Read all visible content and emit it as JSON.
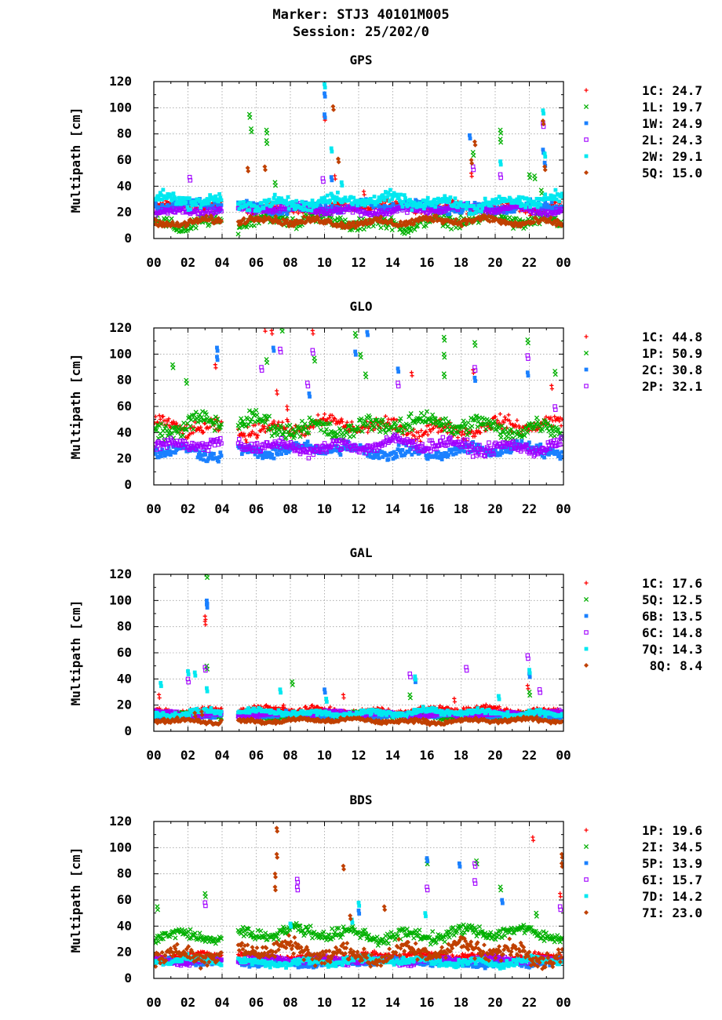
{
  "header": {
    "marker": "Marker: STJ3 40101M005",
    "session": "Session: 25/202/0"
  },
  "chart_data": [
    {
      "type": "scatter",
      "title": "GPS",
      "ylabel": "Multipath [cm]",
      "xlabel": "",
      "x_ticks": [
        "00",
        "02",
        "04",
        "06",
        "08",
        "10",
        "12",
        "14",
        "16",
        "18",
        "20",
        "22",
        "00"
      ],
      "y_ticks": [
        0,
        20,
        40,
        60,
        80,
        100,
        120
      ],
      "xlim": [
        0,
        24
      ],
      "ylim": [
        0,
        120
      ],
      "grid": true,
      "legend_position": "right",
      "gaps": [
        [
          4.0,
          4.9
        ]
      ],
      "series": [
        {
          "name": "1C",
          "value": "24.7",
          "marker": "plus",
          "color": "#ff0000",
          "base": 24,
          "spread": 6,
          "spikes": [
            [
              10.0,
              93
            ],
            [
              10.6,
              48
            ],
            [
              12.3,
              36
            ],
            [
              18.6,
              50
            ]
          ]
        },
        {
          "name": "1L",
          "value": "19.7",
          "marker": "cross",
          "color": "#00b000",
          "base": 13,
          "spread": 9,
          "spikes": [
            [
              5.6,
              95
            ],
            [
              5.7,
              84
            ],
            [
              6.6,
              83
            ],
            [
              6.6,
              75
            ],
            [
              7.1,
              43
            ],
            [
              18.7,
              66
            ],
            [
              20.3,
              83
            ],
            [
              20.3,
              76
            ],
            [
              22.0,
              49
            ],
            [
              22.3,
              48
            ],
            [
              22.7,
              37
            ]
          ]
        },
        {
          "name": "1W",
          "value": "24.9",
          "marker": "square",
          "color": "#1a80ff",
          "base": 24,
          "spread": 6,
          "spikes": [
            [
              10.0,
              111
            ],
            [
              10.0,
              95
            ],
            [
              10.4,
              47
            ],
            [
              18.5,
              79
            ],
            [
              22.8,
              68
            ],
            [
              22.9,
              58
            ]
          ]
        },
        {
          "name": "2L",
          "value": "24.3",
          "marker": "opensquare",
          "color": "#a000ff",
          "base": 22,
          "spread": 5,
          "spikes": [
            [
              2.1,
              47
            ],
            [
              9.9,
              46
            ],
            [
              18.7,
              55
            ],
            [
              20.3,
              49
            ],
            [
              22.8,
              88
            ]
          ]
        },
        {
          "name": "2W",
          "value": "29.1",
          "marker": "square",
          "color": "#00e8f0",
          "base": 28,
          "spread": 8,
          "spikes": [
            [
              10.0,
              118
            ],
            [
              10.4,
              69
            ],
            [
              11.0,
              43
            ],
            [
              20.3,
              59
            ],
            [
              22.8,
              98
            ],
            [
              22.9,
              65
            ]
          ]
        },
        {
          "name": "5Q",
          "value": "15.0",
          "marker": "diamond",
          "color": "#c04000",
          "base": 13,
          "spread": 5,
          "spikes": [
            [
              5.5,
              54
            ],
            [
              6.5,
              55
            ],
            [
              10.5,
              101
            ],
            [
              10.8,
              61
            ],
            [
              18.8,
              74
            ],
            [
              18.6,
              60
            ],
            [
              22.8,
              90
            ],
            [
              22.9,
              55
            ]
          ]
        }
      ]
    },
    {
      "type": "scatter",
      "title": "GLO",
      "ylabel": "Multipath [cm]",
      "xlabel": "",
      "x_ticks": [
        "00",
        "02",
        "04",
        "06",
        "08",
        "10",
        "12",
        "14",
        "16",
        "18",
        "20",
        "22",
        "00"
      ],
      "y_ticks": [
        0,
        20,
        40,
        60,
        80,
        100,
        120
      ],
      "xlim": [
        0,
        24
      ],
      "ylim": [
        0,
        120
      ],
      "grid": true,
      "legend_position": "right",
      "gaps": [
        [
          4.0,
          4.9
        ]
      ],
      "series": [
        {
          "name": "1C",
          "value": "44.8",
          "marker": "plus",
          "color": "#ff0000",
          "base": 44,
          "spread": 10,
          "spikes": [
            [
              3.6,
              92
            ],
            [
              6.5,
              120
            ],
            [
              6.9,
              118
            ],
            [
              7.2,
              72
            ],
            [
              7.8,
              60
            ],
            [
              9.3,
              118
            ],
            [
              15.1,
              86
            ],
            [
              18.7,
              88
            ],
            [
              23.3,
              76
            ]
          ]
        },
        {
          "name": "1P",
          "value": "50.9",
          "marker": "cross",
          "color": "#00b000",
          "base": 45,
          "spread": 12,
          "spikes": [
            [
              1.1,
              92
            ],
            [
              1.9,
              80
            ],
            [
              6.6,
              96
            ],
            [
              7.5,
              120
            ],
            [
              9.4,
              97
            ],
            [
              11.8,
              116
            ],
            [
              12.1,
              100
            ],
            [
              12.4,
              85
            ],
            [
              17.0,
              113
            ],
            [
              17.0,
              100
            ],
            [
              17.0,
              85
            ],
            [
              18.8,
              109
            ],
            [
              21.9,
              111
            ],
            [
              23.5,
              87
            ]
          ]
        },
        {
          "name": "2C",
          "value": "30.8",
          "marker": "square",
          "color": "#1a80ff",
          "base": 26,
          "spread": 8,
          "spikes": [
            [
              3.7,
              105
            ],
            [
              3.7,
              98
            ],
            [
              7.0,
              105
            ],
            [
              9.1,
              70
            ],
            [
              11.8,
              102
            ],
            [
              12.5,
              117
            ],
            [
              14.3,
              89
            ],
            [
              18.8,
              82
            ],
            [
              21.9,
              86
            ]
          ]
        },
        {
          "name": "2P",
          "value": "32.1",
          "marker": "opensquare",
          "color": "#a000ff",
          "base": 30,
          "spread": 8,
          "spikes": [
            [
              6.3,
              90
            ],
            [
              7.4,
              104
            ],
            [
              9.3,
              103
            ],
            [
              9.0,
              78
            ],
            [
              14.3,
              78
            ],
            [
              18.8,
              90
            ],
            [
              21.9,
              99
            ],
            [
              23.5,
              60
            ]
          ]
        }
      ]
    },
    {
      "type": "scatter",
      "title": "GAL",
      "ylabel": "Multipath [cm]",
      "xlabel": "",
      "x_ticks": [
        "00",
        "02",
        "04",
        "06",
        "08",
        "10",
        "12",
        "14",
        "16",
        "18",
        "20",
        "22",
        "00"
      ],
      "y_ticks": [
        0,
        20,
        40,
        60,
        80,
        100,
        120
      ],
      "xlim": [
        0,
        24
      ],
      "ylim": [
        0,
        120
      ],
      "grid": true,
      "legend_position": "right",
      "gaps": [
        [
          4.0,
          4.9
        ]
      ],
      "series": [
        {
          "name": "1C",
          "value": "17.6",
          "marker": "plus",
          "color": "#ff0000",
          "base": 16,
          "spread": 4,
          "spikes": [
            [
              0.3,
              28
            ],
            [
              3.0,
              88
            ],
            [
              3.0,
              84
            ],
            [
              7.6,
              20
            ],
            [
              11.1,
              28
            ],
            [
              17.6,
              25
            ],
            [
              21.9,
              35
            ]
          ]
        },
        {
          "name": "5Q",
          "value": "12.5",
          "marker": "cross",
          "color": "#00b000",
          "base": 12,
          "spread": 3,
          "spikes": [
            [
              3.1,
              120
            ],
            [
              3.1,
              50
            ],
            [
              8.1,
              38
            ],
            [
              15.0,
              28
            ],
            [
              22.0,
              30
            ]
          ]
        },
        {
          "name": "6B",
          "value": "13.5",
          "marker": "square",
          "color": "#1a80ff",
          "base": 12,
          "spread": 3,
          "spikes": [
            [
              3.1,
              100
            ],
            [
              3.1,
              97
            ],
            [
              10.0,
              32
            ],
            [
              15.3,
              40
            ],
            [
              22.0,
              44
            ]
          ]
        },
        {
          "name": "6C",
          "value": "14.8",
          "marker": "opensquare",
          "color": "#a000ff",
          "base": 13,
          "spread": 3,
          "spikes": [
            [
              2.0,
              40
            ],
            [
              3.0,
              49
            ],
            [
              15.0,
              44
            ],
            [
              18.3,
              49
            ],
            [
              21.9,
              58
            ],
            [
              22.6,
              32
            ]
          ]
        },
        {
          "name": "7Q",
          "value": "14.3",
          "marker": "square",
          "color": "#00e8f0",
          "base": 14,
          "spread": 4,
          "spikes": [
            [
              0.4,
              37
            ],
            [
              2.0,
              46
            ],
            [
              2.4,
              45
            ],
            [
              3.1,
              33
            ],
            [
              7.4,
              32
            ],
            [
              10.1,
              25
            ],
            [
              15.3,
              42
            ],
            [
              20.2,
              27
            ],
            [
              22.0,
              47
            ]
          ]
        },
        {
          "name": "8Q",
          "value": "8.4",
          "marker": "diamond",
          "color": "#c04000",
          "base": 8,
          "spread": 3,
          "spikes": [
            [
              2.4,
              14
            ],
            [
              2.8,
              15
            ]
          ]
        }
      ]
    },
    {
      "type": "scatter",
      "title": "BDS",
      "ylabel": "Multipath [cm]",
      "xlabel": "",
      "x_ticks": [
        "00",
        "02",
        "04",
        "06",
        "08",
        "10",
        "12",
        "14",
        "16",
        "18",
        "20",
        "22",
        "00"
      ],
      "y_ticks": [
        0,
        20,
        40,
        60,
        80,
        100,
        120
      ],
      "xlim": [
        0,
        24
      ],
      "ylim": [
        0,
        120
      ],
      "grid": true,
      "legend_position": "right",
      "gaps": [
        [
          4.0,
          4.9
        ]
      ],
      "series": [
        {
          "name": "1P",
          "value": "19.6",
          "marker": "plus",
          "color": "#ff0000",
          "base": 17,
          "spread": 4,
          "spikes": [
            [
              22.2,
              108
            ],
            [
              23.8,
              65
            ]
          ]
        },
        {
          "name": "2I",
          "value": "34.5",
          "marker": "cross",
          "color": "#00b000",
          "base": 34,
          "spread": 8,
          "spikes": [
            [
              0.2,
              55
            ],
            [
              3.0,
              65
            ],
            [
              16.0,
              90
            ],
            [
              18.9,
              90
            ],
            [
              20.3,
              70
            ],
            [
              22.4,
              50
            ]
          ]
        },
        {
          "name": "5P",
          "value": "13.9",
          "marker": "square",
          "color": "#1a80ff",
          "base": 12,
          "spread": 4,
          "spikes": [
            [
              16.0,
              92
            ],
            [
              17.9,
              88
            ],
            [
              12.0,
              52
            ],
            [
              20.4,
              60
            ]
          ]
        },
        {
          "name": "6I",
          "value": "15.7",
          "marker": "opensquare",
          "color": "#a000ff",
          "base": 14,
          "spread": 4,
          "spikes": [
            [
              3.0,
              58
            ],
            [
              8.4,
              76
            ],
            [
              8.4,
              70
            ],
            [
              18.8,
              88
            ],
            [
              18.8,
              75
            ],
            [
              16.0,
              70
            ],
            [
              23.8,
              55
            ]
          ]
        },
        {
          "name": "7D",
          "value": "14.2",
          "marker": "square",
          "color": "#00e8f0",
          "base": 13,
          "spread": 5,
          "spikes": [
            [
              12.0,
              58
            ],
            [
              11.6,
              45
            ],
            [
              15.9,
              50
            ],
            [
              8.0,
              42
            ]
          ]
        },
        {
          "name": "7I",
          "value": "23.0",
          "marker": "diamond",
          "color": "#c04000",
          "base": 20,
          "spread": 12,
          "spikes": [
            [
              7.2,
              115
            ],
            [
              7.2,
              95
            ],
            [
              7.1,
              80
            ],
            [
              7.1,
              70
            ],
            [
              11.1,
              86
            ],
            [
              23.9,
              95
            ],
            [
              23.9,
              88
            ],
            [
              11.5,
              48
            ],
            [
              13.5,
              55
            ]
          ]
        }
      ]
    }
  ]
}
